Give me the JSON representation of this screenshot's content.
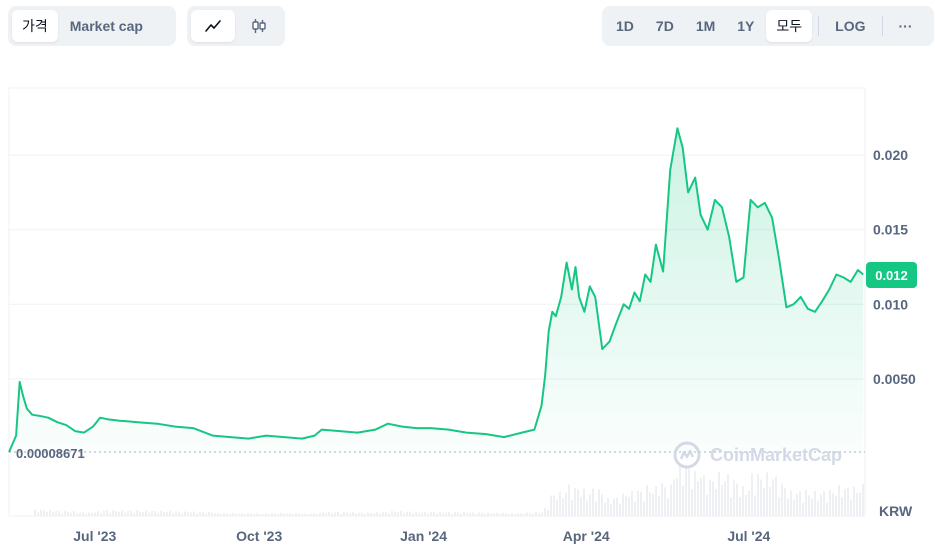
{
  "toolbar": {
    "view_tabs": [
      "가격",
      "Market cap"
    ],
    "chart_type_icons": [
      "line-chart-icon",
      "candlestick-icon"
    ],
    "ranges": [
      "1D",
      "7D",
      "1M",
      "1Y",
      "모두"
    ],
    "log_label": "LOG",
    "more_label": "···"
  },
  "chart_meta": {
    "current_price_label": "0.012",
    "start_price_label": "0.00008671",
    "currency": "KRW",
    "watermark": "CoinMarketCap"
  },
  "colors": {
    "accent": "#16c784",
    "grid": "#eff2f5",
    "text": "#58667e"
  },
  "chart_data": {
    "type": "area",
    "title": "",
    "xlabel": "",
    "ylabel": "",
    "x_ticks": [
      "Jul '23",
      "Oct '23",
      "Jan '24",
      "Apr '24",
      "Jul '24"
    ],
    "y_ticks": [
      0.005,
      0.01,
      0.015,
      0.02
    ],
    "y_tick_labels": [
      "0.0050",
      "0.010",
      "0.015",
      "0.020"
    ],
    "ylim": [
      0.0001,
      0.0245
    ],
    "xlim": [
      "2023-05-14",
      "2024-09-04"
    ],
    "grid": true,
    "legend": "none",
    "series": [
      {
        "x": [
          "2023-05-14",
          "2023-05-18",
          "2023-05-20",
          "2023-05-22",
          "2023-05-24",
          "2023-05-27",
          "2023-06-01",
          "2023-06-05",
          "2023-06-10",
          "2023-06-15",
          "2023-06-20",
          "2023-06-25",
          "2023-06-30",
          "2023-07-04",
          "2023-07-08",
          "2023-07-15",
          "2023-07-25",
          "2023-08-05",
          "2023-08-15",
          "2023-08-25",
          "2023-09-05",
          "2023-09-15",
          "2023-09-25",
          "2023-10-05",
          "2023-10-15",
          "2023-10-25",
          "2023-11-01",
          "2023-11-05",
          "2023-11-15",
          "2023-11-25",
          "2023-12-05",
          "2023-12-12",
          "2023-12-20",
          "2023-12-28",
          "2024-01-05",
          "2024-01-15",
          "2024-01-25",
          "2024-02-05",
          "2024-02-15",
          "2024-02-25",
          "2024-03-03",
          "2024-03-07",
          "2024-03-09",
          "2024-03-11",
          "2024-03-13",
          "2024-03-15",
          "2024-03-18",
          "2024-03-21",
          "2024-03-24",
          "2024-03-26",
          "2024-03-28",
          "2024-03-31",
          "2024-04-03",
          "2024-04-06",
          "2024-04-10",
          "2024-04-14",
          "2024-04-18",
          "2024-04-22",
          "2024-04-25",
          "2024-04-28",
          "2024-05-01",
          "2024-05-04",
          "2024-05-07",
          "2024-05-10",
          "2024-05-14",
          "2024-05-18",
          "2024-05-22",
          "2024-05-25",
          "2024-05-28",
          "2024-06-01",
          "2024-06-04",
          "2024-06-08",
          "2024-06-12",
          "2024-06-16",
          "2024-06-20",
          "2024-06-24",
          "2024-06-28",
          "2024-07-02",
          "2024-07-06",
          "2024-07-10",
          "2024-07-14",
          "2024-07-18",
          "2024-07-22",
          "2024-07-26",
          "2024-07-30",
          "2024-08-03",
          "2024-08-07",
          "2024-08-11",
          "2024-08-15",
          "2024-08-19",
          "2024-08-23",
          "2024-08-27",
          "2024-08-31",
          "2024-09-03"
        ],
        "values": [
          9e-05,
          0.0012,
          0.0048,
          0.0038,
          0.003,
          0.0026,
          0.0025,
          0.0024,
          0.0021,
          0.0019,
          0.0015,
          0.0014,
          0.0018,
          0.0024,
          0.0023,
          0.0022,
          0.0021,
          0.002,
          0.0018,
          0.0017,
          0.0012,
          0.0011,
          0.001,
          0.0012,
          0.0011,
          0.001,
          0.0012,
          0.0016,
          0.0015,
          0.0014,
          0.0016,
          0.002,
          0.0018,
          0.0017,
          0.0017,
          0.0016,
          0.0014,
          0.0013,
          0.0011,
          0.0014,
          0.0016,
          0.0032,
          0.0052,
          0.0082,
          0.0095,
          0.0092,
          0.0105,
          0.0128,
          0.011,
          0.0125,
          0.0105,
          0.0095,
          0.0112,
          0.0105,
          0.007,
          0.0075,
          0.0088,
          0.01,
          0.0097,
          0.0108,
          0.0102,
          0.012,
          0.0115,
          0.014,
          0.0122,
          0.019,
          0.0218,
          0.0205,
          0.0175,
          0.0185,
          0.016,
          0.015,
          0.017,
          0.0165,
          0.0145,
          0.0115,
          0.0118,
          0.017,
          0.0165,
          0.0168,
          0.0158,
          0.013,
          0.0098,
          0.01,
          0.0105,
          0.0097,
          0.0095,
          0.0102,
          0.011,
          0.012,
          0.0118,
          0.0115,
          0.0123,
          0.012
        ]
      }
    ]
  }
}
